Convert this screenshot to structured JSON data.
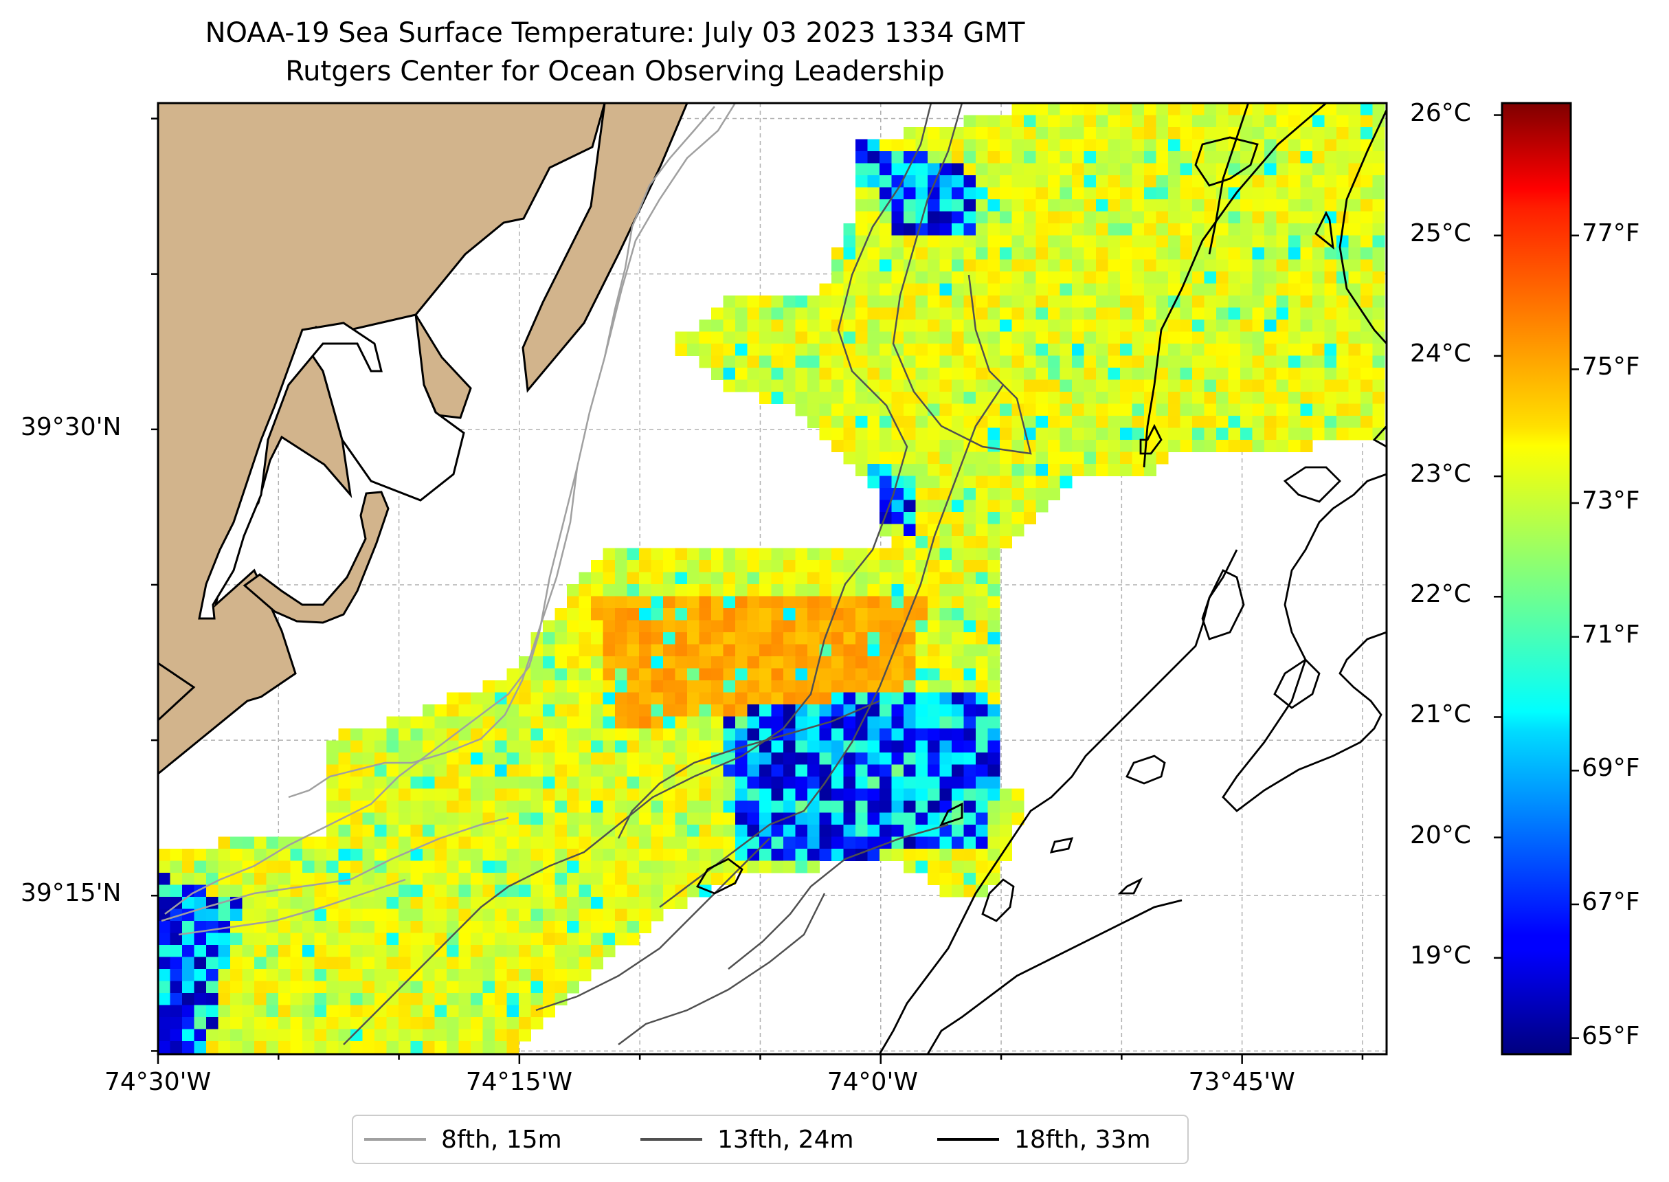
{
  "title": "NOAA-19 Sea Surface Temperature: July 03 2023 1334 GMT",
  "subtitle": "Rutgers Center for Ocean Observing Leadership",
  "axes": {
    "lon_ticks": [
      {
        "value": -74.5,
        "label": "74°30'W"
      },
      {
        "value": -74.25,
        "label": "74°15'W"
      },
      {
        "value": -74.0,
        "label": "74°0'W"
      },
      {
        "value": -73.75,
        "label": "73°45'W"
      }
    ],
    "lat_ticks": [
      {
        "value": 39.5,
        "label": "39°30'N"
      },
      {
        "value": 39.25,
        "label": "39°15'N"
      }
    ],
    "lon_range": [
      -74.5,
      -73.65
    ],
    "lat_range": [
      39.165,
      39.675
    ],
    "grid": true
  },
  "colorbar": {
    "colormap": "jet",
    "celsius_range": [
      18.2,
      26.1
    ],
    "celsius_ticks": [
      {
        "value": 26,
        "label": "26°C"
      },
      {
        "value": 25,
        "label": "25°C"
      },
      {
        "value": 24,
        "label": "24°C"
      },
      {
        "value": 23,
        "label": "23°C"
      },
      {
        "value": 22,
        "label": "22°C"
      },
      {
        "value": 21,
        "label": "21°C"
      },
      {
        "value": 20,
        "label": "20°C"
      },
      {
        "value": 19,
        "label": "19°C"
      }
    ],
    "fahrenheit_ticks": [
      {
        "value": 77,
        "label": "77°F"
      },
      {
        "value": 75,
        "label": "75°F"
      },
      {
        "value": 73,
        "label": "73°F"
      },
      {
        "value": 71,
        "label": "71°F"
      },
      {
        "value": 69,
        "label": "69°F"
      },
      {
        "value": 67,
        "label": "67°F"
      },
      {
        "value": 65,
        "label": "65°F"
      }
    ]
  },
  "legend": [
    {
      "label": "8fth, 15m",
      "color": "#a0a0a0"
    },
    {
      "label": "13fth, 24m",
      "color": "#505050"
    },
    {
      "label": "18fth, 33m",
      "color": "#000000"
    }
  ],
  "colors": {
    "land": "#d2b48c",
    "grid": "#b0b0b0"
  }
}
